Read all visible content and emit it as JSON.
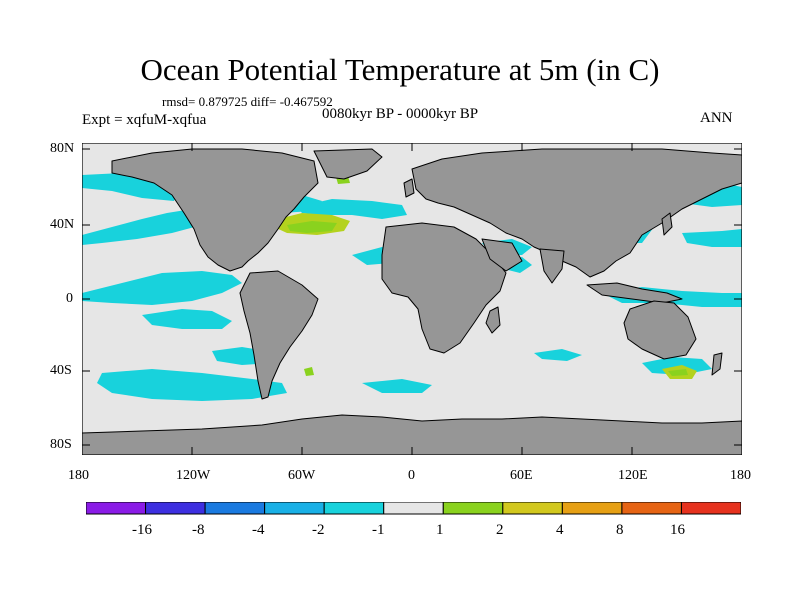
{
  "title": "Ocean Potential Temperature at 5m (in C)",
  "stats": "rmsd= 0.879725 diff= -0.467592",
  "experiment": "Expt = xqfuM-xqfua",
  "period": "0080kyr BP - 0000kyr BP",
  "season": "ANN",
  "axes": {
    "x_ticks": [
      "180",
      "120W",
      "60W",
      "0",
      "60E",
      "120E",
      "180"
    ],
    "y_ticks": [
      "80N",
      "40N",
      "0",
      "40S",
      "80S"
    ]
  },
  "colorbar": {
    "labels": [
      "-16",
      "-8",
      "-4",
      "-2",
      "-1",
      "1",
      "2",
      "4",
      "8",
      "16"
    ],
    "colors": [
      "#8a1be6",
      "#3d2fe0",
      "#1a7ae0",
      "#19b0e6",
      "#18d2dc",
      "#e6e6e6",
      "#8ad21e",
      "#d2c81e",
      "#e6a014",
      "#e66414",
      "#e6321e"
    ]
  },
  "colors": {
    "land": "#969696",
    "ocean_neutral": "#e6e6e6",
    "anomaly_neg": "#18d2dc",
    "anomaly_pos": "#b4d21e",
    "anomaly_pos_strong": "#8ad21e"
  }
}
